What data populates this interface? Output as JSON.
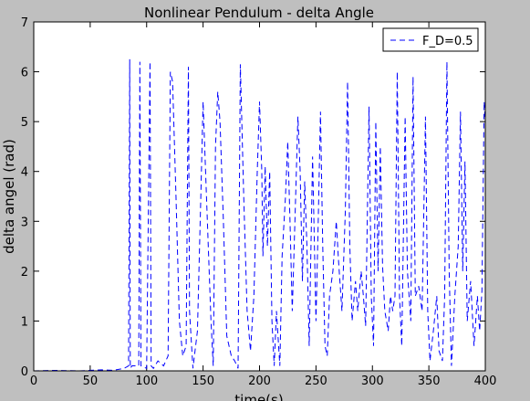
{
  "chart_data": {
    "type": "line",
    "title": "Nonlinear Pendulum - delta Angle",
    "xlabel": "time(s)",
    "ylabel": "delta angel (rad)",
    "legend": "upper right",
    "xlim": [
      0,
      400
    ],
    "xticks": [
      0,
      50,
      100,
      150,
      200,
      250,
      300,
      350,
      400
    ],
    "ylim": [
      0,
      7
    ],
    "yticks": [
      0,
      1,
      2,
      3,
      4,
      5,
      6,
      7
    ],
    "x": [
      0,
      20,
      40,
      60,
      70,
      80,
      84,
      85,
      85.5,
      87,
      93,
      94,
      95,
      100,
      103,
      104,
      106,
      110,
      115,
      119,
      121,
      123,
      126,
      129,
      132,
      135,
      137,
      138,
      141,
      145,
      148,
      150,
      153,
      157,
      159,
      161,
      163,
      165,
      168,
      171,
      175,
      178,
      181,
      183,
      186,
      189,
      192,
      195,
      198,
      200,
      202,
      203,
      205,
      207,
      209,
      211,
      213,
      215,
      218,
      220,
      223,
      225,
      227,
      229,
      232,
      234,
      236,
      238,
      240,
      242,
      244,
      247,
      250,
      252,
      254,
      256,
      258,
      260,
      262,
      265,
      268,
      270,
      273,
      276,
      278,
      280,
      282,
      285,
      287,
      290,
      292,
      294,
      297,
      299,
      301,
      303,
      305,
      307,
      309,
      311,
      314,
      316,
      318,
      320,
      322,
      324,
      326,
      329,
      331,
      334,
      336,
      338,
      341,
      344,
      347,
      349,
      351,
      354,
      357,
      359,
      362,
      364,
      366,
      368,
      370,
      373,
      376,
      378,
      380,
      382,
      384,
      387,
      390,
      393,
      395,
      397,
      399,
      400
    ],
    "series": [
      {
        "name": "F_D=0.5",
        "color": "#0000ff",
        "values": [
          0,
          0.01,
          0,
          0.02,
          0.01,
          0.05,
          0.1,
          6.25,
          0.05,
          0.1,
          0.1,
          6.2,
          0.1,
          0.05,
          6.2,
          0.1,
          0.05,
          0.2,
          0.1,
          0.3,
          6.0,
          5.8,
          3.5,
          1.0,
          0.3,
          0.5,
          6.1,
          1.2,
          0.05,
          0.8,
          3.5,
          5.4,
          3.5,
          1.0,
          0.1,
          4.5,
          5.6,
          5.0,
          3.0,
          0.7,
          0.3,
          0.2,
          0.05,
          6.15,
          3.5,
          1.2,
          0.4,
          1.5,
          4.0,
          5.4,
          4.0,
          2.3,
          4.1,
          2.5,
          4.0,
          1.0,
          0.1,
          1.2,
          0.1,
          2.3,
          3.5,
          4.6,
          3.0,
          1.2,
          3.5,
          5.1,
          4.0,
          1.8,
          3.8,
          2.5,
          0.5,
          4.3,
          1.0,
          3.0,
          5.2,
          2.5,
          0.5,
          0.3,
          1.5,
          2.0,
          3.0,
          2.2,
          1.2,
          3.2,
          5.8,
          2.5,
          1.0,
          1.8,
          1.2,
          2.0,
          1.5,
          0.9,
          5.3,
          1.5,
          0.5,
          5.0,
          2.0,
          4.5,
          2.1,
          1.2,
          0.8,
          1.5,
          1.2,
          1.5,
          6.0,
          1.5,
          0.5,
          5.1,
          2.0,
          1.0,
          5.9,
          1.5,
          1.7,
          1.2,
          5.1,
          1.2,
          0.2,
          0.8,
          1.5,
          0.4,
          0.2,
          1.5,
          6.2,
          2.0,
          0.1,
          1.5,
          2.5,
          5.2,
          2.0,
          4.2,
          1.0,
          1.8,
          0.5,
          1.5,
          0.8,
          1.6,
          5.4,
          5.0
        ]
      }
    ]
  }
}
